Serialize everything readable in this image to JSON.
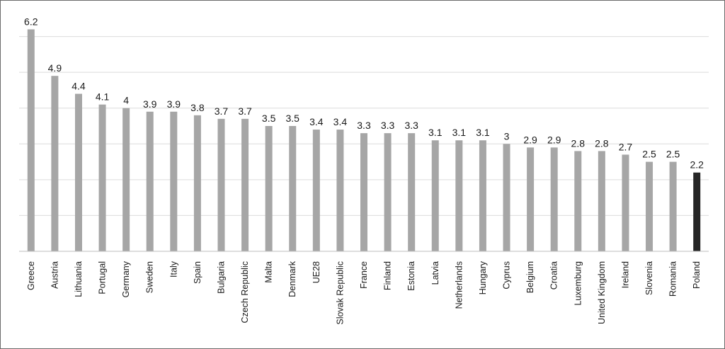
{
  "chart_data": {
    "type": "bar",
    "categories": [
      "Greece",
      "Austria",
      "Lithuania",
      "Portugal",
      "Germany",
      "Sweden",
      "Italy",
      "Spain",
      "Bulgaria",
      "Czech Republic",
      "Malta",
      "Denmark",
      "UE28",
      "Slovak Republic",
      "France",
      "Finland",
      "Estonia",
      "Latvia",
      "Netherlands",
      "Hungary",
      "Cyprus",
      "Belgium",
      "Croatia",
      "Luxemburg",
      "United Kingdom",
      "Ireland",
      "Slovenia",
      "Romania",
      "Poland"
    ],
    "values": [
      6.2,
      4.9,
      4.4,
      4.1,
      4,
      3.9,
      3.9,
      3.8,
      3.7,
      3.7,
      3.5,
      3.5,
      3.4,
      3.4,
      3.3,
      3.3,
      3.3,
      3.1,
      3.1,
      3.1,
      3,
      2.9,
      2.9,
      2.8,
      2.8,
      2.7,
      2.5,
      2.5,
      2.2
    ],
    "value_labels": [
      "6.2",
      "4.9",
      "4.4",
      "4.1",
      "4",
      "3.9",
      "3.9",
      "3.8",
      "3.7",
      "3.7",
      "3.5",
      "3.5",
      "3.4",
      "3.4",
      "3.3",
      "3.3",
      "3.3",
      "3.1",
      "3.1",
      "3.1",
      "3",
      "2.9",
      "2.9",
      "2.8",
      "2.8",
      "2.7",
      "2.5",
      "2.5",
      "2.2"
    ],
    "highlight_category": "Poland",
    "colors": {
      "default_bar": "#a6a6a6",
      "highlight_bar": "#262626",
      "gridline": "#dcdcdc"
    },
    "ylim": [
      0,
      7
    ],
    "y_gridlines": [
      1,
      2,
      3,
      4,
      5,
      6,
      7
    ],
    "grid": true,
    "legend": "none",
    "title": "",
    "xlabel": "",
    "ylabel": ""
  }
}
